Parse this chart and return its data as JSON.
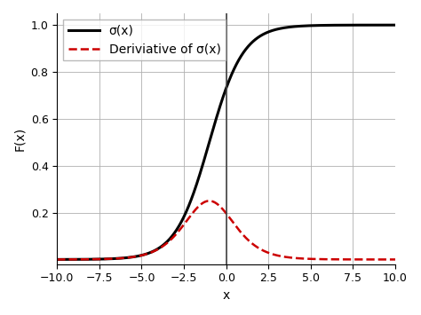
{
  "xlim": [
    -10.0,
    10.0
  ],
  "ylim": [
    -0.02,
    1.05
  ],
  "xlabel": "x",
  "ylabel": "F(x)",
  "xticks": [
    -10.0,
    -7.5,
    -5.0,
    -2.5,
    0.0,
    2.5,
    5.0,
    7.5,
    10.0
  ],
  "yticks": [
    0.2,
    0.4,
    0.6,
    0.8,
    1.0
  ],
  "sigmoid_color": "#000000",
  "sigmoid_linewidth": 2.2,
  "sigmoid_label": "σ(x)",
  "sigmoid_shift": 1.0,
  "derivative_color": "#cc0000",
  "derivative_linewidth": 1.8,
  "derivative_linestyle": "--",
  "derivative_label": "Deriviative of σ(x)",
  "grid": true,
  "grid_color": "#b0b0b0",
  "grid_linewidth": 0.6,
  "background_color": "#ffffff",
  "axis_label_fontsize": 10,
  "tick_fontsize": 9,
  "legend_fontsize": 10,
  "vline_x": 0.0,
  "vline_color": "#444444",
  "vline_linewidth": 1.2,
  "figsize": [
    4.74,
    3.55
  ],
  "dpi": 100
}
